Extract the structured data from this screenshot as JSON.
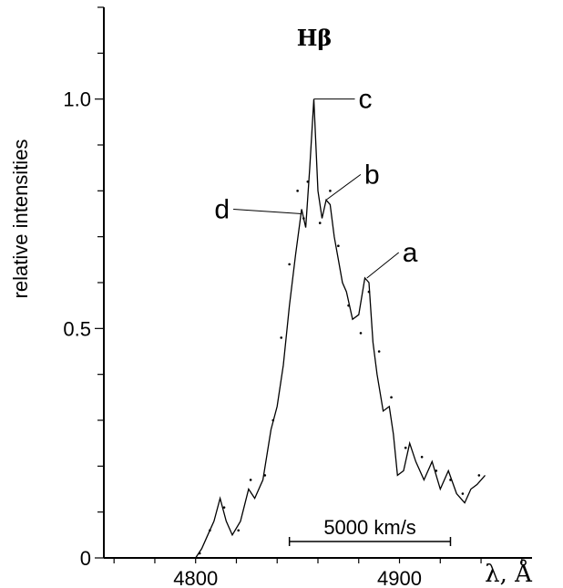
{
  "chart_data": {
    "type": "line",
    "title": "Hβ",
    "ylabel": "relative intensities",
    "xlabel": "λ, Å",
    "xlim": [
      4755,
      4965
    ],
    "ylim": [
      0,
      1.2
    ],
    "x_ticks": [
      4800,
      4900
    ],
    "y_ticks": [
      0,
      0.5,
      1.0
    ],
    "x_tick_labels": [
      "4800",
      "4900"
    ],
    "y_tick_labels": [
      "0",
      "0.5",
      "1.0"
    ],
    "grid": false,
    "series": [
      {
        "x": [
          4780,
          4800,
          4803,
          4806,
          4809,
          4812,
          4815,
          4818,
          4822,
          4826,
          4829,
          4833,
          4837,
          4840,
          4843,
          4846,
          4849,
          4852,
          4854,
          4856,
          4858,
          4860,
          4862,
          4864,
          4866,
          4868,
          4870,
          4872,
          4874,
          4877,
          4880,
          4883,
          4885,
          4887,
          4889,
          4892,
          4895,
          4897,
          4899,
          4902,
          4905,
          4908,
          4912,
          4916,
          4920,
          4924,
          4928,
          4932,
          4935,
          4938,
          4942
        ],
        "y": [
          0.0,
          0.0,
          0.02,
          0.05,
          0.08,
          0.13,
          0.08,
          0.05,
          0.08,
          0.15,
          0.13,
          0.17,
          0.28,
          0.33,
          0.42,
          0.55,
          0.66,
          0.76,
          0.72,
          0.85,
          1.0,
          0.8,
          0.74,
          0.78,
          0.77,
          0.7,
          0.65,
          0.6,
          0.58,
          0.52,
          0.53,
          0.61,
          0.6,
          0.47,
          0.4,
          0.32,
          0.33,
          0.27,
          0.18,
          0.19,
          0.25,
          0.21,
          0.17,
          0.21,
          0.15,
          0.19,
          0.14,
          0.12,
          0.15,
          0.16,
          0.18
        ]
      }
    ],
    "scatter_points": {
      "x": [
        4802,
        4807,
        4814,
        4821,
        4827,
        4834,
        4838,
        4842,
        4846,
        4850,
        4853,
        4855,
        4861,
        4866,
        4870,
        4875,
        4881,
        4885,
        4890,
        4896,
        4903,
        4911,
        4918,
        4925,
        4931,
        4939
      ],
      "y": [
        0.01,
        0.06,
        0.11,
        0.06,
        0.17,
        0.18,
        0.3,
        0.48,
        0.64,
        0.8,
        0.74,
        0.82,
        0.73,
        0.8,
        0.68,
        0.55,
        0.49,
        0.58,
        0.45,
        0.35,
        0.24,
        0.22,
        0.19,
        0.17,
        0.14,
        0.18
      ]
    },
    "annotations": [
      {
        "label": "c",
        "x": 4858,
        "y": 1.0
      },
      {
        "label": "b",
        "x": 4864,
        "y": 0.78
      },
      {
        "label": "d",
        "x": 4852,
        "y": 0.75
      },
      {
        "label": "a",
        "x": 4884,
        "y": 0.61
      }
    ],
    "scale_bar": {
      "label": "5000 km/s",
      "x_start": 4846,
      "x_end": 4925
    }
  }
}
